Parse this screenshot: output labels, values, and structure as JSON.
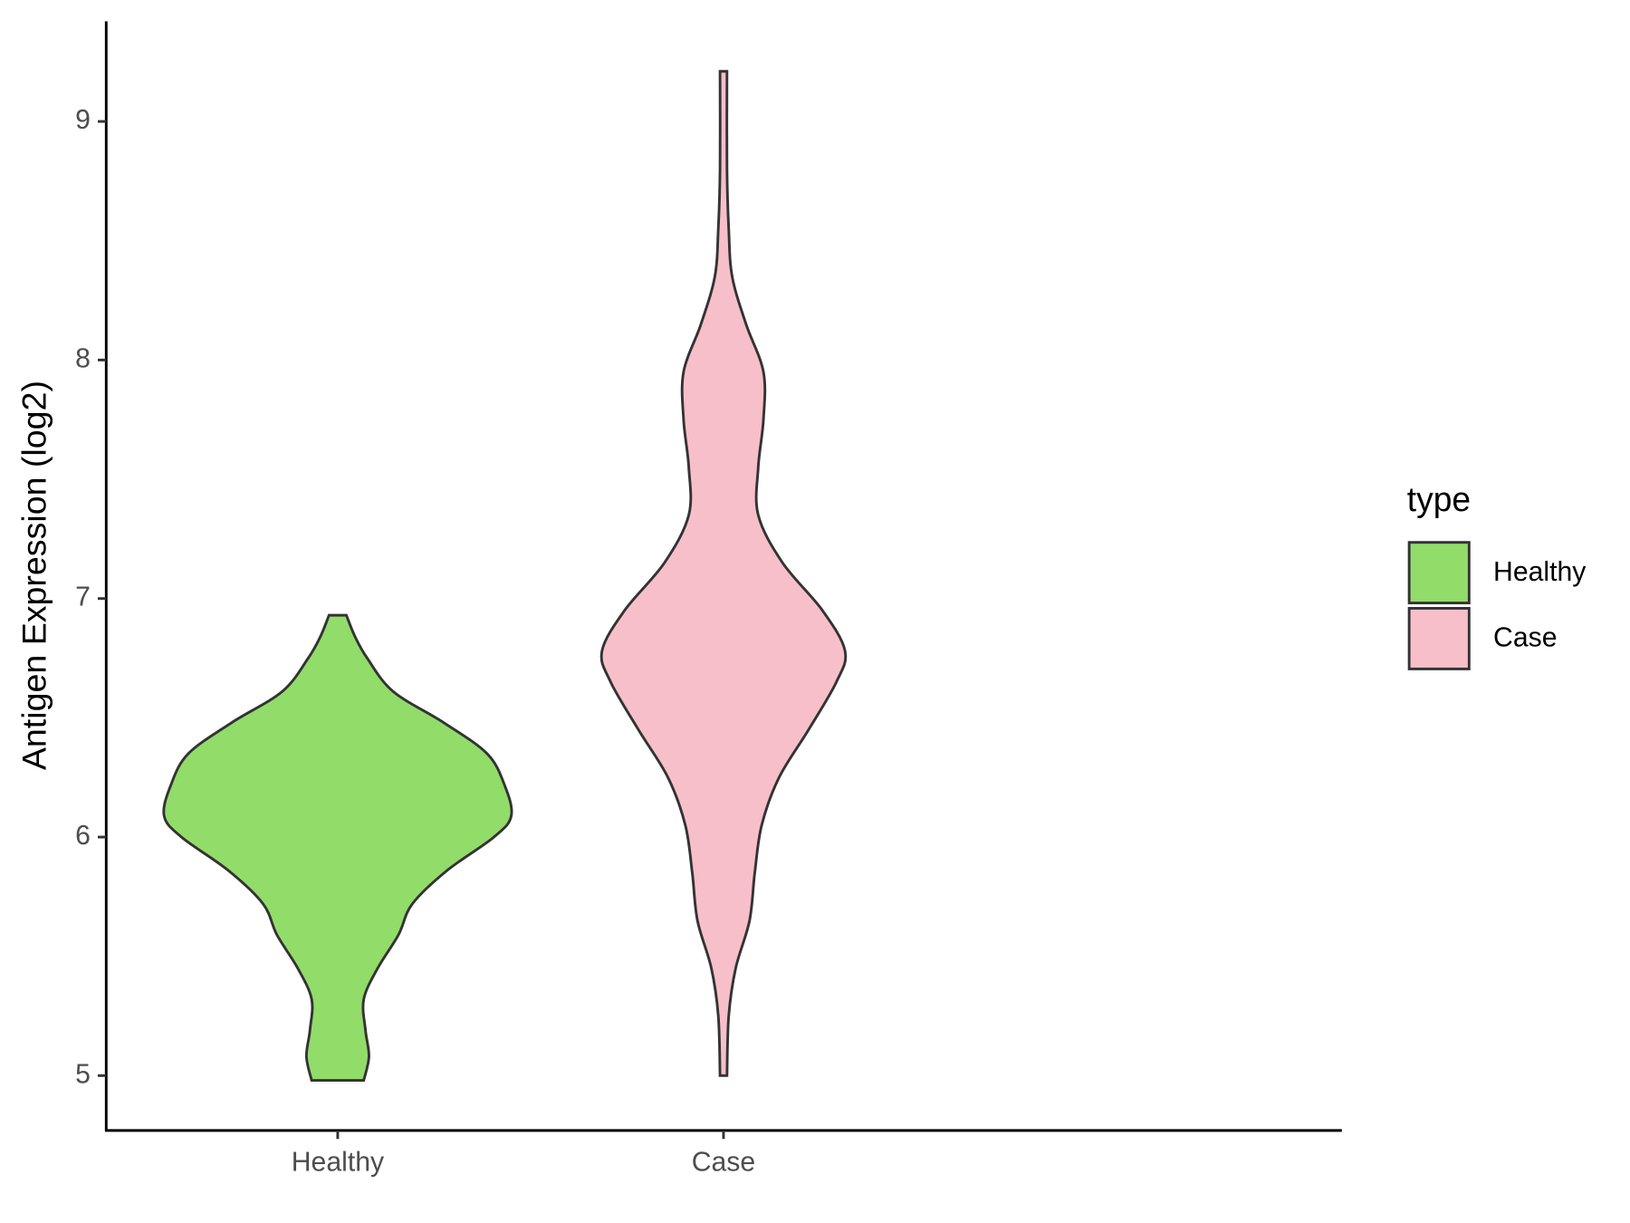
{
  "chart_data": {
    "type": "violin",
    "y_label": "Antigen Expression (log2)",
    "categories": [
      "Healthy",
      "Case"
    ],
    "legend_title": "type",
    "legend_position": "right",
    "ylim": [
      4.77,
      9.42
    ],
    "yticks": [
      5,
      6,
      7,
      8,
      9
    ],
    "series": [
      {
        "name": "Healthy",
        "color": "#92dc6a",
        "y": [
          4.98,
          5.08,
          5.19,
          5.32,
          5.45,
          5.59,
          5.72,
          5.86,
          6.0,
          6.09,
          6.22,
          6.35,
          6.48,
          6.61,
          6.75,
          6.84,
          6.93
        ],
        "density": [
          0.15,
          0.18,
          0.16,
          0.15,
          0.23,
          0.35,
          0.43,
          0.63,
          0.9,
          1.0,
          0.96,
          0.86,
          0.61,
          0.32,
          0.17,
          0.1,
          0.05
        ]
      },
      {
        "name": "Case",
        "color": "#f7bfca",
        "y": [
          5.0,
          5.25,
          5.45,
          5.65,
          5.85,
          6.05,
          6.25,
          6.45,
          6.65,
          6.78,
          6.95,
          7.15,
          7.35,
          7.55,
          7.75,
          7.95,
          8.15,
          8.35,
          8.55,
          8.8,
          9.21
        ],
        "density": [
          0.02,
          0.03,
          0.07,
          0.15,
          0.18,
          0.22,
          0.32,
          0.49,
          0.65,
          0.7,
          0.57,
          0.34,
          0.2,
          0.2,
          0.23,
          0.23,
          0.13,
          0.05,
          0.03,
          0.02,
          0.02
        ]
      }
    ]
  }
}
